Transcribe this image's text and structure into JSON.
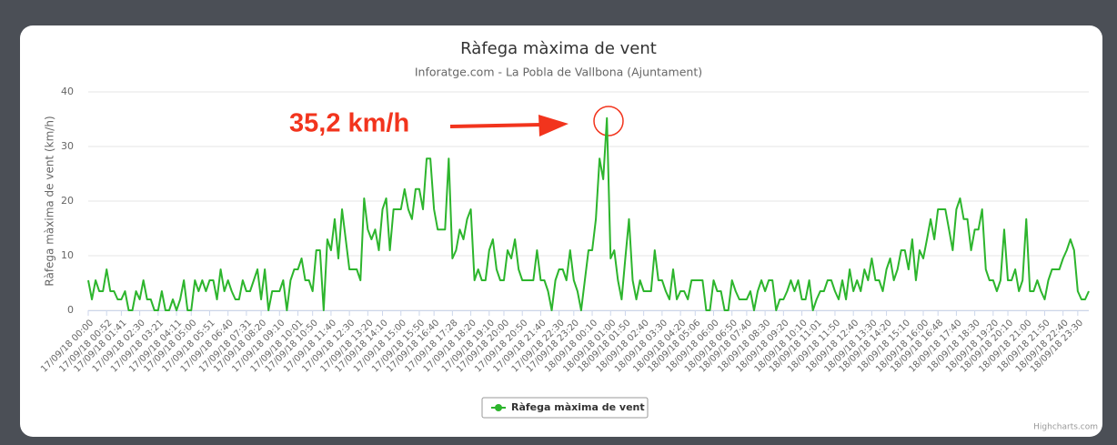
{
  "chart_data": {
    "type": "line",
    "title": "Ràfega màxima de vent",
    "subtitle": "Inforatge.com - La Pobla de Vallbona (Ajuntament)",
    "y_label": "Ràfega màxima de vent (km/h)",
    "annotation": "35,2 km/h",
    "credits": "Highcharts.com",
    "ylim": [
      0,
      40
    ],
    "yticks": [
      0,
      10,
      20,
      30,
      40
    ],
    "grid": true,
    "categories": [
      "17/09/18 00:00",
      null,
      null,
      null,
      null,
      "17/09/18 00:52",
      null,
      null,
      null,
      "17/09/18 01:41",
      null,
      null,
      null,
      null,
      "17/09/18 02:30",
      null,
      null,
      null,
      null,
      "17/09/18 03:21",
      null,
      null,
      null,
      null,
      "17/09/18 04:11",
      null,
      null,
      null,
      "17/09/18 05:00",
      null,
      null,
      null,
      null,
      "17/09/18 05:51",
      null,
      null,
      null,
      null,
      "17/09/18 06:40",
      null,
      null,
      null,
      null,
      "17/09/18 07:31",
      null,
      null,
      null,
      "17/09/18 08:20",
      null,
      null,
      null,
      null,
      "17/09/18 09:10",
      null,
      null,
      null,
      null,
      "17/09/18 10:01",
      null,
      null,
      null,
      "17/09/18 10:50",
      null,
      null,
      null,
      null,
      "17/09/18 11:40",
      null,
      null,
      null,
      null,
      "17/09/18 12:30",
      null,
      null,
      null,
      null,
      "17/09/18 13:20",
      null,
      null,
      null,
      "17/09/18 14:10",
      null,
      null,
      null,
      null,
      "17/09/18 15:00",
      null,
      null,
      null,
      null,
      "17/09/18 15:50",
      null,
      null,
      null,
      "17/09/18 16:40",
      null,
      null,
      null,
      null,
      "17/09/18 17:28",
      null,
      null,
      null,
      null,
      "17/09/18 18:20",
      null,
      null,
      null,
      null,
      "17/09/18 19:10",
      null,
      null,
      null,
      "17/09/18 20:00",
      null,
      null,
      null,
      null,
      "17/09/18 20:50",
      null,
      null,
      null,
      null,
      "17/09/18 21:40",
      null,
      null,
      null,
      null,
      "17/09/18 22:30",
      null,
      null,
      null,
      "17/09/18 23:20",
      null,
      null,
      null,
      null,
      "18/09/18 00:10",
      null,
      null,
      null,
      null,
      "18/09/18 01:00",
      null,
      null,
      null,
      "18/09/18 01:50",
      null,
      null,
      null,
      null,
      "18/09/18 02:40",
      null,
      null,
      null,
      null,
      "18/09/18 03:30",
      null,
      null,
      null,
      null,
      "18/09/18 04:20",
      null,
      null,
      null,
      "18/09/18 05:06",
      null,
      null,
      null,
      null,
      "18/09/18 06:00",
      null,
      null,
      null,
      null,
      "18/09/18 06:50",
      null,
      null,
      null,
      "18/09/18 07:40",
      null,
      null,
      null,
      null,
      "18/09/18 08:30",
      null,
      null,
      null,
      null,
      "18/09/18 09:20",
      null,
      null,
      null,
      null,
      "18/09/18 10:10",
      null,
      null,
      null,
      "18/09/18 11:01",
      null,
      null,
      null,
      null,
      "18/09/18 11:50",
      null,
      null,
      null,
      null,
      "18/09/18 12:40",
      null,
      null,
      null,
      null,
      "18/09/18 13:30",
      null,
      null,
      null,
      "18/09/18 14:20",
      null,
      null,
      null,
      null,
      "18/09/18 15:10",
      null,
      null,
      null,
      null,
      "18/09/18 16:00",
      null,
      null,
      null,
      "18/09/18 16:48",
      null,
      null,
      null,
      null,
      "18/09/18 17:40",
      null,
      null,
      null,
      null,
      "18/09/18 18:30",
      null,
      null,
      null,
      null,
      "18/09/18 19:20",
      null,
      null,
      null,
      "18/09/18 20:10",
      null,
      null,
      null,
      null,
      "18/09/18 21:00",
      null,
      null,
      null,
      null,
      "18/09/18 21:50",
      null,
      null,
      null,
      null,
      "18/09/18 22:40",
      null,
      null,
      null,
      "18/09/18 23:30",
      null,
      null,
      null
    ],
    "series": [
      {
        "name": "Ràfega màxima de vent",
        "color": "#2db52d",
        "values": [
          5.5,
          2,
          5.5,
          3.5,
          3.5,
          7.5,
          3.5,
          3.5,
          2,
          2,
          3.5,
          0,
          0,
          3.5,
          2,
          5.5,
          2,
          2,
          0,
          0,
          3.5,
          0,
          0,
          2,
          0,
          2,
          5.5,
          0,
          0,
          5.5,
          3.5,
          5.5,
          3.5,
          5.5,
          5.5,
          2,
          7.5,
          3.5,
          5.5,
          3.5,
          2,
          2,
          5.5,
          3.5,
          3.5,
          5.5,
          7.5,
          2,
          7.5,
          0,
          3.5,
          3.5,
          3.5,
          5.5,
          0,
          5.5,
          7.5,
          7.5,
          9.5,
          5.5,
          5.5,
          3.5,
          11,
          11,
          0,
          13,
          11,
          16.7,
          9.5,
          18.5,
          13,
          7.5,
          7.5,
          7.5,
          5.5,
          20.5,
          14.8,
          13,
          14.8,
          11,
          18.5,
          20.5,
          11,
          18.5,
          18.5,
          18.5,
          22.2,
          18.5,
          16.7,
          22.2,
          22.2,
          18.5,
          27.8,
          27.8,
          18.5,
          14.8,
          14.8,
          14.8,
          27.8,
          9.5,
          11,
          14.8,
          13,
          16.7,
          18.5,
          5.5,
          7.5,
          5.5,
          5.5,
          11,
          13,
          7.5,
          5.5,
          5.5,
          11,
          9.5,
          13,
          7.5,
          5.5,
          5.5,
          5.5,
          5.5,
          11,
          5.5,
          5.5,
          3.5,
          0,
          5.5,
          7.5,
          7.5,
          5.5,
          11,
          5.5,
          3.5,
          0,
          5.5,
          11,
          11,
          16.7,
          27.8,
          24,
          35.2,
          9.5,
          11,
          5.5,
          2,
          9.5,
          16.7,
          5.5,
          2,
          5.5,
          3.5,
          3.5,
          3.5,
          11,
          5.5,
          5.5,
          3.5,
          2,
          7.5,
          2,
          3.5,
          3.5,
          2,
          5.5,
          5.5,
          5.5,
          5.5,
          0,
          0,
          5.5,
          3.5,
          3.5,
          0,
          0,
          5.5,
          3.5,
          2,
          2,
          2,
          3.5,
          0,
          3.5,
          5.5,
          3.5,
          5.5,
          5.5,
          0,
          2,
          2,
          3.5,
          5.5,
          3.5,
          5.5,
          2,
          2,
          5.5,
          0,
          2,
          3.5,
          3.5,
          5.5,
          5.5,
          3.5,
          2,
          5.5,
          2,
          7.5,
          3.5,
          5.5,
          3.5,
          7.5,
          5.5,
          9.5,
          5.5,
          5.5,
          3.5,
          7.5,
          9.5,
          5.5,
          7.5,
          11,
          11,
          7.5,
          13,
          5.5,
          11,
          9.5,
          13,
          16.7,
          13,
          18.5,
          18.5,
          18.5,
          14.8,
          11,
          18.5,
          20.5,
          16.7,
          16.7,
          11,
          14.8,
          14.8,
          18.5,
          7.5,
          5.5,
          5.5,
          3.5,
          5.5,
          14.8,
          5.5,
          5.5,
          7.5,
          3.5,
          5.5,
          16.7,
          3.5,
          3.5,
          5.5,
          3.5,
          2,
          5.5,
          7.5,
          7.5,
          7.5,
          9.5,
          11,
          13,
          11,
          3.5,
          2,
          2,
          3.5
        ]
      }
    ]
  }
}
